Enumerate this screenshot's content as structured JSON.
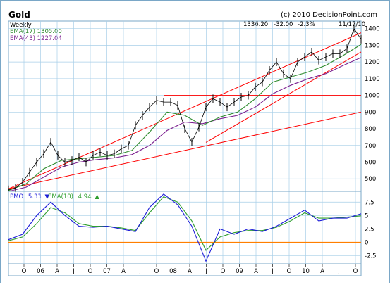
{
  "chart_data": [
    {
      "type": "line",
      "title": "Gold",
      "source": "(c) 2010 DecisionPoint.com",
      "period": "Weekly",
      "quote": {
        "last": "1336.20",
        "change": "-32.00",
        "change_pct": "-2.3%",
        "date": "11/17/10"
      },
      "legend": [
        {
          "text": "EMA(17) 1305.00",
          "color": "#2e8b2e"
        },
        {
          "text": "EMA(43) 1227.04",
          "color": "#7a1e8e"
        }
      ],
      "y_ticks": [
        500,
        600,
        700,
        800,
        900,
        1000,
        1100,
        1200,
        1300,
        1400
      ],
      "ylim": [
        425,
        1445
      ],
      "xlim": [
        0,
        100
      ],
      "grid": true,
      "colors": {
        "price": "#000000",
        "ema17": "#2e8b2e",
        "ema43": "#7a1e8e",
        "trendline": "#ff0000",
        "grid": "#a8cfe8",
        "frame": "#7aa7c7",
        "background": "#ffffff"
      },
      "series": [
        {
          "name": "Price",
          "x": [
            0,
            2,
            4,
            6,
            8,
            10,
            12,
            14,
            16,
            18,
            20,
            22,
            24,
            26,
            28,
            30,
            32,
            34,
            36,
            38,
            40,
            42,
            44,
            46,
            48,
            50,
            52,
            54,
            56,
            58,
            60,
            62,
            64,
            66,
            68,
            70,
            72,
            74,
            76,
            78,
            80,
            82,
            84,
            86,
            88,
            90,
            92,
            94,
            96,
            98,
            100
          ],
          "values": [
            435,
            445,
            480,
            540,
            600,
            650,
            720,
            640,
            600,
            610,
            630,
            600,
            640,
            660,
            640,
            650,
            680,
            700,
            820,
            880,
            930,
            970,
            960,
            960,
            940,
            800,
            720,
            810,
            930,
            980,
            960,
            930,
            960,
            990,
            1000,
            1050,
            1080,
            1150,
            1200,
            1130,
            1100,
            1200,
            1230,
            1260,
            1210,
            1230,
            1250,
            1250,
            1280,
            1400,
            1336
          ]
        },
        {
          "name": "EMA(17)",
          "x": [
            0,
            5,
            10,
            15,
            20,
            25,
            30,
            35,
            40,
            45,
            50,
            55,
            60,
            65,
            70,
            75,
            80,
            85,
            90,
            95,
            100
          ],
          "values": [
            430,
            470,
            560,
            610,
            620,
            630,
            640,
            670,
            780,
            900,
            880,
            820,
            870,
            900,
            980,
            1080,
            1110,
            1140,
            1180,
            1240,
            1305
          ]
        },
        {
          "name": "EMA(43)",
          "x": [
            0,
            5,
            10,
            15,
            20,
            25,
            30,
            35,
            40,
            45,
            50,
            55,
            60,
            65,
            70,
            75,
            80,
            85,
            90,
            95,
            100
          ],
          "values": [
            425,
            450,
            510,
            570,
            600,
            615,
            625,
            645,
            700,
            790,
            840,
            830,
            860,
            880,
            930,
            1010,
            1060,
            1100,
            1130,
            1180,
            1227
          ]
        }
      ],
      "trendlines": [
        {
          "x": [
            0,
            100
          ],
          "values": [
            440,
            1375
          ]
        },
        {
          "x": [
            0,
            100
          ],
          "values": [
            440,
            900
          ]
        },
        {
          "x": [
            44,
            100
          ],
          "values": [
            1000,
            1000
          ]
        },
        {
          "x": [
            56,
            100
          ],
          "values": [
            718,
            1260
          ]
        }
      ]
    },
    {
      "type": "line",
      "legend": [
        {
          "text": "PMO",
          "value": "5.33",
          "arrow": "▼",
          "color": "#1c1cd8"
        },
        {
          "text": "EMA(10)",
          "value": "4.94",
          "arrow": "▲",
          "color": "#2e9e2e"
        }
      ],
      "y_ticks": [
        "7.5",
        "5",
        "2.5",
        "0",
        "-2.5"
      ],
      "ylim": [
        -4,
        9.5
      ],
      "xlim": [
        0,
        100
      ],
      "zero_line_color": "#ff7f00",
      "series": [
        {
          "name": "PMO",
          "x": [
            0,
            4,
            8,
            12,
            16,
            20,
            24,
            28,
            32,
            36,
            40,
            44,
            48,
            52,
            56,
            60,
            64,
            68,
            72,
            76,
            80,
            84,
            88,
            92,
            96,
            100
          ],
          "values": [
            0.5,
            1.5,
            5,
            7.5,
            5,
            3,
            2.8,
            3,
            2.5,
            2,
            6.5,
            9,
            7,
            3,
            -3.5,
            2.5,
            1.5,
            2.5,
            2,
            3,
            4.5,
            6,
            4,
            4.5,
            4.5,
            5.33
          ]
        },
        {
          "name": "EMA(10)",
          "x": [
            0,
            4,
            8,
            12,
            16,
            20,
            24,
            28,
            32,
            36,
            40,
            44,
            48,
            52,
            56,
            60,
            64,
            68,
            72,
            76,
            80,
            84,
            88,
            92,
            96,
            100
          ],
          "values": [
            0.3,
            1,
            3.5,
            6.5,
            5.5,
            3.5,
            3,
            3,
            2.7,
            2.2,
            5.5,
            8.5,
            7.5,
            4,
            -1.5,
            1,
            1.8,
            2.2,
            2.2,
            2.8,
            4,
            5.5,
            4.5,
            4.5,
            4.7,
            4.94
          ]
        }
      ],
      "x_tick_labels": [
        "O",
        "06",
        "A",
        "J",
        "O",
        "07",
        "A",
        "J",
        "O",
        "08",
        "A",
        "J",
        "O",
        "09",
        "A",
        "J",
        "O",
        "10",
        "A",
        "J",
        "O"
      ]
    }
  ]
}
